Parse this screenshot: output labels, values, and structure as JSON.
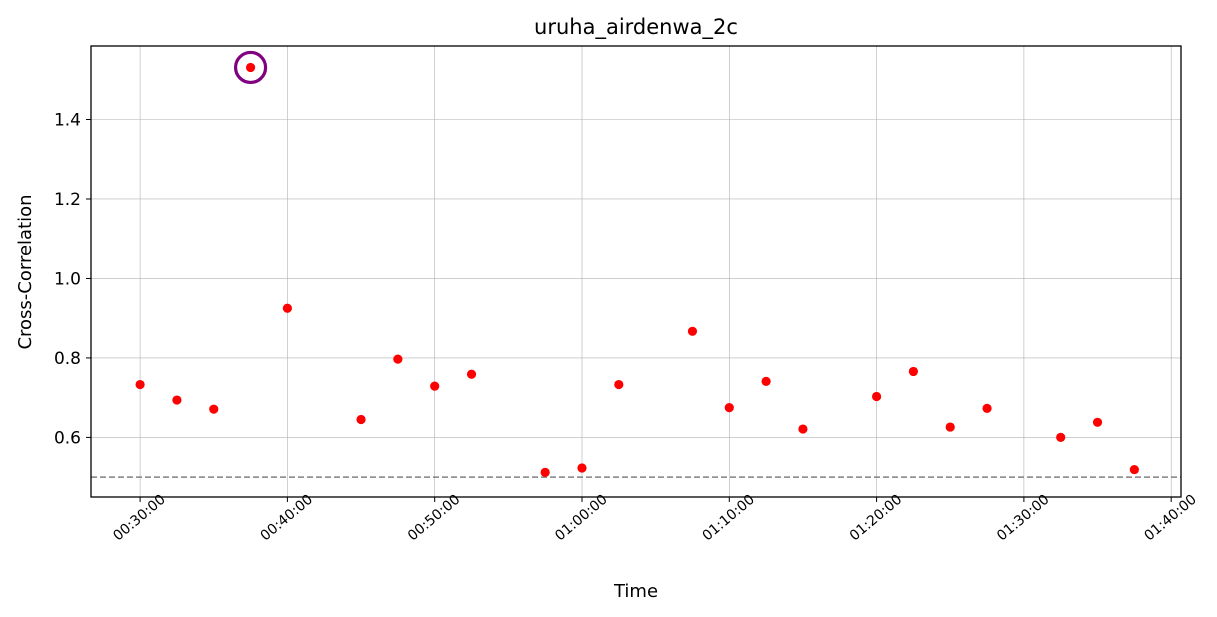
{
  "chart_data": {
    "type": "scatter",
    "title": "uruha_airdenwa_2c",
    "xlabel": "Time",
    "ylabel": "Cross-Correlation",
    "xlim": [
      "00:26:40",
      "01:40:40"
    ],
    "ylim": [
      0.45,
      1.585
    ],
    "x_ticks": [
      "00:30:00",
      "00:40:00",
      "00:50:00",
      "01:00:00",
      "01:10:00",
      "01:20:00",
      "01:30:00",
      "01:40:00"
    ],
    "y_ticks": [
      "0.6",
      "0.8",
      "1.0",
      "1.2",
      "1.4"
    ],
    "grid": true,
    "threshold": 0.5,
    "series": [
      {
        "color": "#ff0000",
        "points": [
          {
            "x": "00:30:00",
            "y": 0.733
          },
          {
            "x": "00:32:30",
            "y": 0.694
          },
          {
            "x": "00:35:00",
            "y": 0.671
          },
          {
            "x": "00:37:30",
            "y": 1.531
          },
          {
            "x": "00:40:00",
            "y": 0.925
          },
          {
            "x": "00:45:00",
            "y": 0.645
          },
          {
            "x": "00:47:30",
            "y": 0.797
          },
          {
            "x": "00:50:00",
            "y": 0.729
          },
          {
            "x": "00:52:30",
            "y": 0.759
          },
          {
            "x": "00:57:30",
            "y": 0.512
          },
          {
            "x": "01:00:00",
            "y": 0.523
          },
          {
            "x": "01:02:30",
            "y": 0.733
          },
          {
            "x": "01:07:30",
            "y": 0.867
          },
          {
            "x": "01:10:00",
            "y": 0.675
          },
          {
            "x": "01:12:30",
            "y": 0.741
          },
          {
            "x": "01:15:00",
            "y": 0.621
          },
          {
            "x": "01:20:00",
            "y": 0.703
          },
          {
            "x": "01:22:30",
            "y": 0.766
          },
          {
            "x": "01:25:00",
            "y": 0.626
          },
          {
            "x": "01:27:30",
            "y": 0.673
          },
          {
            "x": "01:32:30",
            "y": 0.6
          },
          {
            "x": "01:35:00",
            "y": 0.638
          },
          {
            "x": "01:37:30",
            "y": 0.519
          }
        ]
      }
    ],
    "highlighted_point": {
      "x": "00:37:30",
      "y": 1.531
    },
    "colors": {
      "points": "#ff0000",
      "highlight_ring": "#800080",
      "threshold_line": "#808080",
      "grid": "#b0b0b0"
    }
  }
}
